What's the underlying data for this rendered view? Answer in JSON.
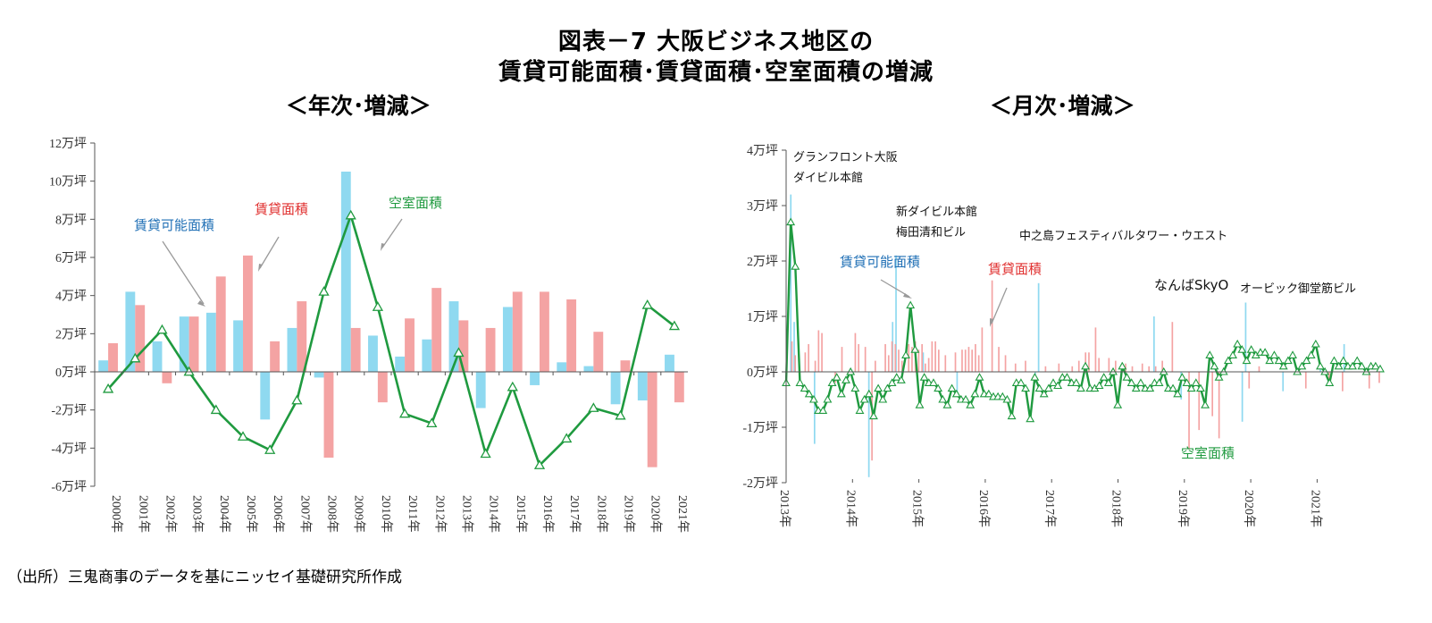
{
  "title_line1": "図表－7 大阪ビジネス地区の",
  "title_line2": "賃貸可能面積･賃貸面積･空室面積の増減",
  "source": "（出所）三鬼商事のデータを基にニッセイ基礎研究所作成",
  "colors": {
    "available": "#8fd9f0",
    "leased": "#f4a3a3",
    "vacant": "#1f9a3f",
    "label_available": "#1f6fb5",
    "label_leased": "#e0302f",
    "label_vacant": "#1f9a3f"
  },
  "chart_data": [
    {
      "type": "bar+line",
      "subtitle": "＜年次･増減＞",
      "categories": [
        "2000年",
        "2001年",
        "2002年",
        "2003年",
        "2004年",
        "2005年",
        "2006年",
        "2007年",
        "2008年",
        "2009年",
        "2010年",
        "2011年",
        "2012年",
        "2013年",
        "2014年",
        "2015年",
        "2016年",
        "2017年",
        "2018年",
        "2019年",
        "2020年",
        "2021年"
      ],
      "series": [
        {
          "name": "賃貸可能面積",
          "type": "bar",
          "values": [
            0.6,
            4.2,
            1.6,
            2.9,
            3.1,
            2.7,
            -2.5,
            2.3,
            -0.3,
            10.5,
            1.9,
            0.8,
            1.7,
            3.7,
            -1.9,
            3.4,
            -0.7,
            0.5,
            0.3,
            -1.7,
            -1.5,
            0.9
          ]
        },
        {
          "name": "賃貸面積",
          "type": "bar",
          "values": [
            1.5,
            3.5,
            -0.6,
            2.9,
            5.0,
            6.1,
            1.6,
            3.7,
            -4.5,
            2.3,
            -1.6,
            2.8,
            4.4,
            2.7,
            2.3,
            4.2,
            4.2,
            3.8,
            2.1,
            0.6,
            -5.0,
            -1.6
          ]
        },
        {
          "name": "空室面積",
          "type": "line",
          "values": [
            -0.9,
            0.7,
            2.2,
            0.0,
            -2.0,
            -3.4,
            -4.1,
            -1.5,
            4.2,
            8.2,
            3.4,
            -2.2,
            -2.7,
            1.0,
            -4.3,
            -0.8,
            -4.9,
            -3.5,
            -1.9,
            -2.3,
            3.5,
            2.4
          ]
        }
      ],
      "yticks": [
        "12万坪",
        "10万坪",
        "8万坪",
        "6万坪",
        "4万坪",
        "2万坪",
        "0万坪",
        "-2万坪",
        "-4万坪",
        "-6万坪"
      ],
      "ylim": [
        -6,
        12
      ],
      "ylabel_unit": "万坪"
    },
    {
      "type": "bar+line",
      "subtitle": "＜月次･増減＞",
      "xticks": [
        "2013年",
        "2014年",
        "2015年",
        "2016年",
        "2017年",
        "2018年",
        "2019年",
        "2020年",
        "2021年"
      ],
      "yticks": [
        "4万坪",
        "3万坪",
        "2万坪",
        "1万坪",
        "0万坪",
        "-1万坪",
        "-2万坪"
      ],
      "ylim": [
        -2,
        4
      ],
      "series": [
        {
          "name": "賃貸可能面積",
          "type": "bar",
          "values": [
            0,
            3.2,
            0.9,
            0,
            0,
            0,
            0,
            0,
            -1.3,
            0,
            0,
            0,
            0,
            0,
            0,
            0,
            0,
            0,
            0,
            0,
            0,
            0,
            0,
            0,
            -1.9,
            0,
            0,
            0,
            0,
            0,
            0,
            0.9,
            2.1,
            0,
            0,
            0,
            0,
            0,
            0,
            0,
            0.35,
            0,
            0,
            0,
            0,
            0,
            0,
            0,
            0,
            0,
            -0.4,
            0,
            0,
            0,
            0,
            0,
            0,
            0,
            0,
            0,
            0,
            0,
            0,
            0,
            0,
            0,
            0,
            0,
            0,
            0,
            0,
            0,
            0,
            -0.2,
            1.6,
            0,
            0,
            0,
            0,
            0,
            0,
            0,
            0,
            0,
            0,
            0,
            0,
            0,
            0,
            0,
            0,
            0,
            0,
            0,
            0,
            0,
            0,
            0,
            0,
            0,
            0,
            0,
            0,
            0,
            0,
            0,
            0,
            0,
            1.0,
            0,
            0,
            0,
            0,
            0,
            0,
            0,
            -0.5,
            0,
            0,
            0,
            0,
            0,
            0,
            0,
            0,
            0,
            0,
            0,
            0,
            0,
            0,
            0,
            0,
            0,
            -0.9,
            1.25,
            0,
            0,
            0,
            0,
            0,
            0,
            0,
            0,
            0,
            0,
            -0.35,
            0,
            0,
            0,
            0,
            0,
            0,
            0,
            0,
            0,
            0,
            0.15,
            0,
            0,
            0,
            0,
            0,
            0,
            0.5,
            0,
            0,
            0,
            0,
            0,
            0,
            0,
            0,
            0,
            0
          ]
        },
        {
          "name": "賃貸面積",
          "type": "bar",
          "values": [
            0,
            0.55,
            0.3,
            0,
            0,
            0.35,
            0.5,
            0,
            0.2,
            0.75,
            0.7,
            0,
            0,
            0,
            -0.2,
            0,
            0.45,
            0,
            0,
            0,
            0.7,
            0.5,
            0,
            0.45,
            0,
            -1.6,
            0.2,
            0,
            0,
            0.5,
            0.3,
            0.55,
            0.5,
            0.4,
            0.2,
            0,
            0.5,
            0.45,
            0.55,
            0.4,
            0.5,
            0.15,
            0.25,
            0.55,
            0.55,
            0.4,
            0,
            0.3,
            0,
            0,
            0.35,
            0,
            0.4,
            0.4,
            0.45,
            0.4,
            0.5,
            0.3,
            0.8,
            0,
            0,
            1.65,
            0,
            0.45,
            0,
            0.3,
            0,
            0,
            0.15,
            0,
            0,
            0.2,
            0,
            0,
            0,
            0,
            0,
            0.1,
            0,
            0,
            0,
            0.15,
            0,
            0,
            0,
            0.1,
            0,
            0.2,
            0,
            0.35,
            0.35,
            0,
            0.8,
            0.25,
            0,
            0,
            0.25,
            0,
            0.2,
            0,
            0,
            0.15,
            0,
            0.1,
            0,
            0,
            0.15,
            0,
            0.1,
            0,
            0.1,
            0,
            0.2,
            0,
            0,
            0.9,
            0,
            0,
            0,
            0,
            -1.4,
            0,
            0,
            -1.05,
            0,
            0,
            0,
            -0.8,
            0,
            -1.2,
            0,
            0,
            0,
            0,
            0,
            0,
            0,
            0,
            -0.3,
            0,
            0,
            0.1,
            0,
            0,
            0,
            0,
            0,
            0,
            0,
            0,
            0,
            0,
            0,
            0,
            0,
            -0.3,
            0,
            0,
            0,
            0,
            0,
            0,
            -0.2,
            0,
            0,
            0,
            -0.35,
            0,
            0,
            0,
            0,
            0,
            0,
            0,
            -0.3,
            0,
            0,
            -0.2
          ]
        },
        {
          "name": "空室面積",
          "type": "line",
          "values": [
            -0.2,
            2.7,
            1.9,
            -0.2,
            -0.3,
            -0.4,
            -0.5,
            -0.7,
            -0.7,
            -0.5,
            -0.2,
            -0.1,
            -0.4,
            -0.15,
            0.0,
            -0.3,
            -0.7,
            -0.5,
            -0.4,
            -0.8,
            -0.3,
            -0.5,
            -0.3,
            -0.2,
            -0.1,
            -0.15,
            0.3,
            1.2,
            0.4,
            -0.6,
            -0.1,
            -0.2,
            -0.2,
            -0.3,
            -0.5,
            -0.6,
            -0.3,
            -0.4,
            -0.5,
            -0.5,
            -0.6,
            -0.4,
            -0.1,
            -0.4,
            -0.4,
            -0.45,
            -0.45,
            -0.45,
            -0.5,
            -0.8,
            -0.2,
            -0.2,
            -0.3,
            -0.85,
            -0.1,
            -0.3,
            -0.4,
            -0.3,
            -0.2,
            -0.25,
            -0.1,
            -0.1,
            -0.2,
            -0.2,
            -0.3,
            0.1,
            -0.3,
            -0.3,
            -0.25,
            -0.1,
            -0.2,
            0.0,
            -0.6,
            0.1,
            -0.1,
            -0.2,
            -0.3,
            -0.2,
            -0.3,
            -0.3,
            -0.2,
            -0.2,
            0.0,
            -0.3,
            -0.3,
            -0.4,
            -0.1,
            -0.2,
            -0.3,
            -0.2,
            -0.3,
            -0.6,
            0.3,
            0.1,
            -0.1,
            0.0,
            0.2,
            0.3,
            0.5,
            0.4,
            0.2,
            0.4,
            0.3,
            0.35,
            0.35,
            0.2,
            0.3,
            0.2,
            0.1,
            0.2,
            0.3,
            0.0,
            0.1,
            0.2,
            0.3,
            0.5,
            0.1,
            0.0,
            -0.2,
            0.2,
            0.1,
            0.2,
            0.1,
            0.1,
            0.2,
            0.1,
            0.0,
            0.1,
            0.1,
            0.05
          ]
        }
      ],
      "annotations": [
        "グランフロント大阪",
        "ダイビル本館",
        "新ダイビル本館",
        "梅田清和ビル",
        "中之島フェスティバルタワー・ウエスト",
        "なんばSkyO",
        "オービック御堂筋ビル"
      ]
    }
  ]
}
